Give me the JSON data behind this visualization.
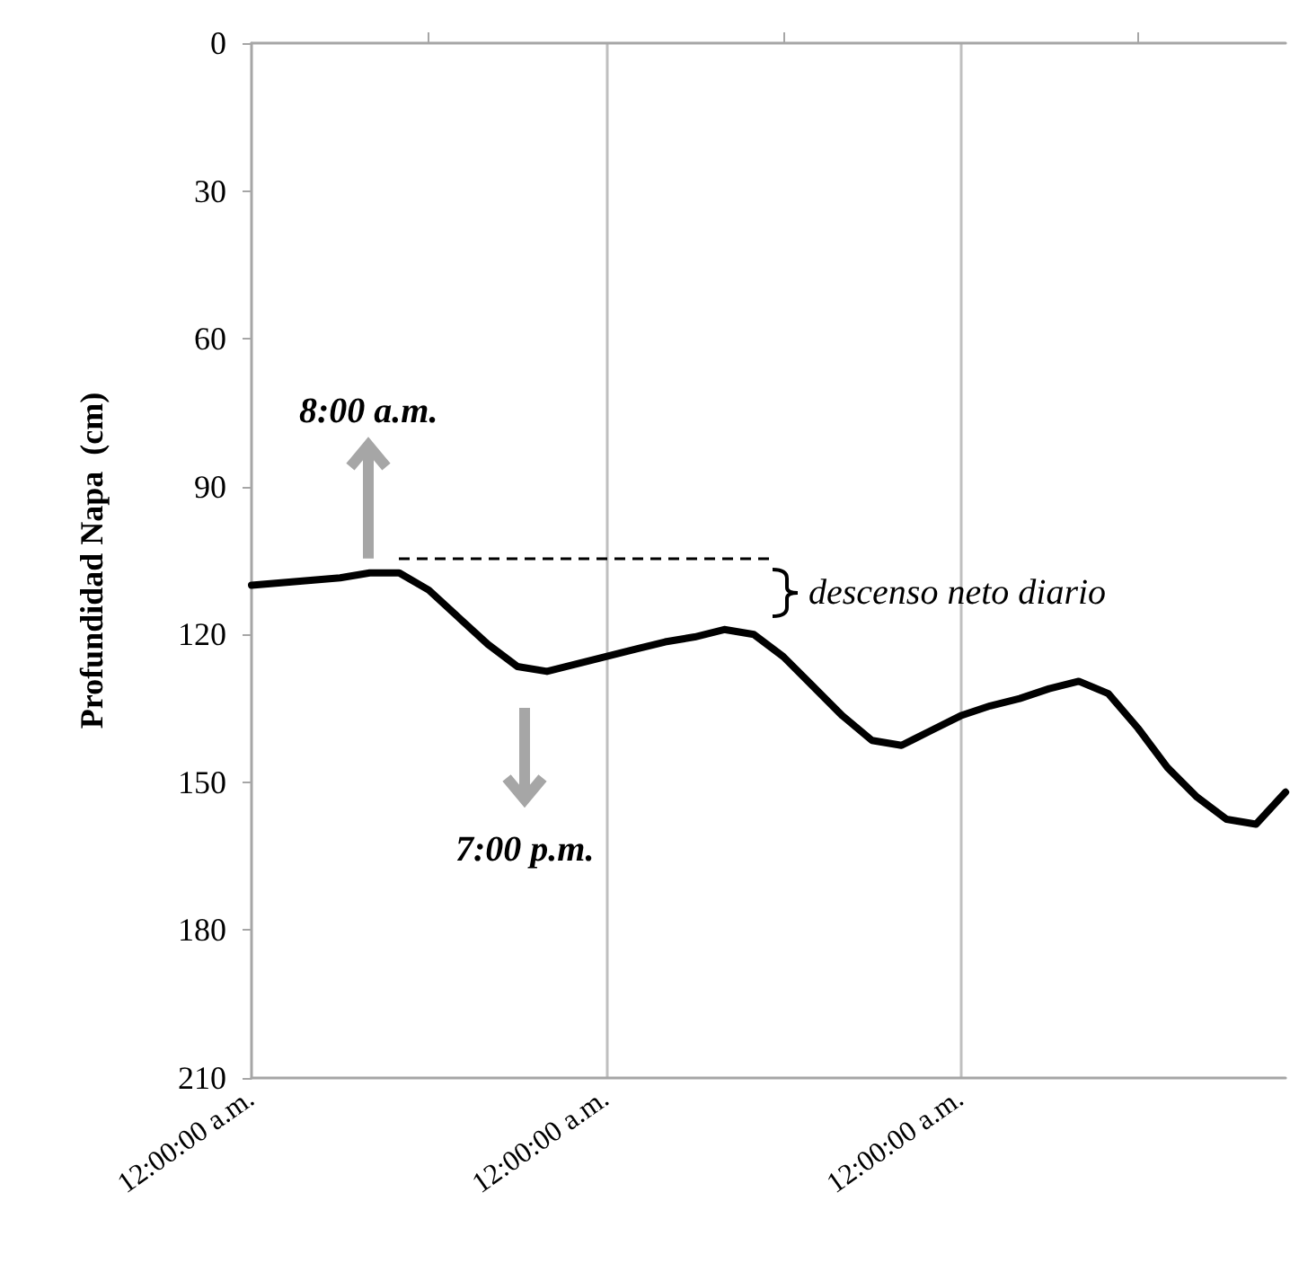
{
  "chart_data": {
    "type": "line",
    "ylabel": "Profundidad Napa  (cm)",
    "categories": [
      "12:00:00 a.m.",
      null,
      null,
      null,
      null,
      null,
      null,
      null,
      null,
      null,
      null,
      null,
      "12:00:00 a.m.",
      null,
      null,
      null,
      null,
      null,
      null,
      null,
      null,
      null,
      null,
      null,
      "12:00:00 a.m.",
      null,
      null,
      null,
      null,
      null,
      null,
      null,
      null,
      null,
      null,
      null
    ],
    "series": [
      {
        "color": "#000000",
        "values": [
          110,
          109.5,
          109,
          108.5,
          107.5,
          107.5,
          111,
          116.5,
          122,
          126.5,
          127.5,
          126,
          124.5,
          123,
          121.5,
          120.5,
          119,
          120,
          124.5,
          130.5,
          136.5,
          141.5,
          142.5,
          139.5,
          136.5,
          134.5,
          133,
          131,
          129.5,
          132,
          139,
          147,
          153,
          157.5,
          158.5,
          152
        ]
      }
    ],
    "ylim": [
      210,
      0
    ],
    "yticks": [
      0,
      30,
      60,
      90,
      120,
      150,
      180,
      210
    ],
    "grid": "x",
    "marker": "none",
    "line_style": "solid",
    "annotations": [
      {
        "text": "8:00 a.m.",
        "y": 107.5
      },
      "7:00 p.m.",
      "descenso neto diario"
    ]
  }
}
